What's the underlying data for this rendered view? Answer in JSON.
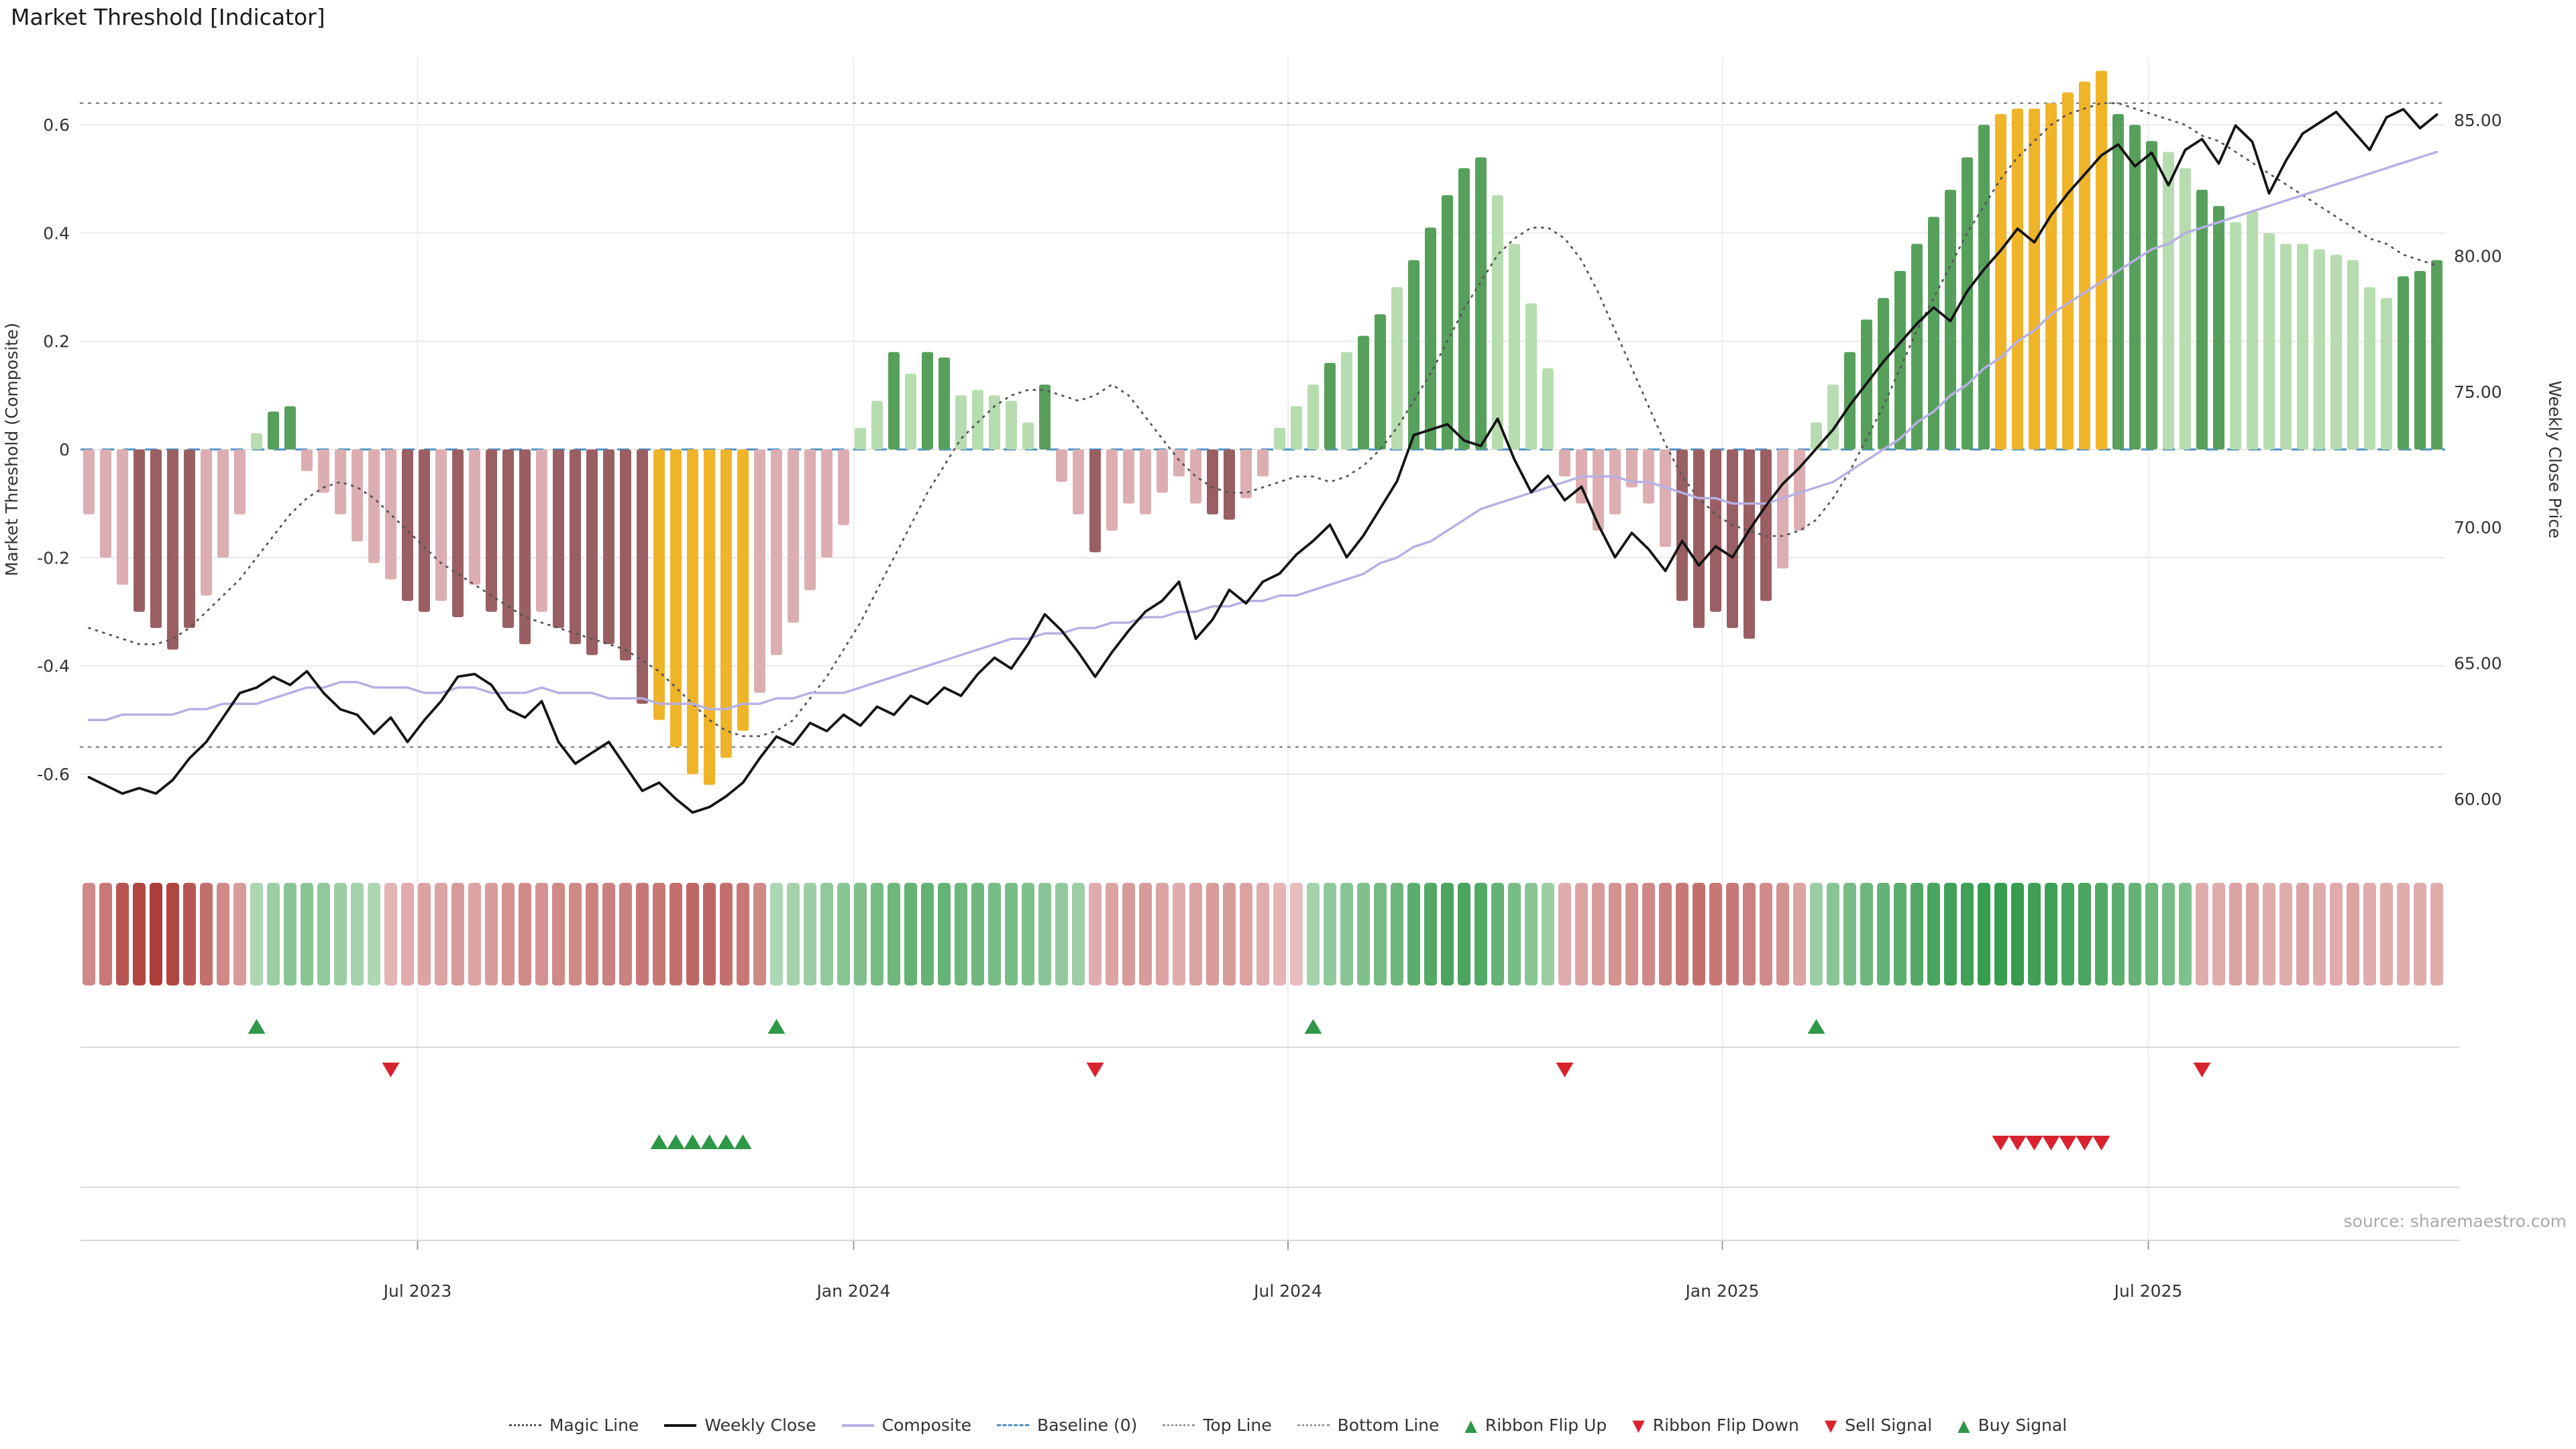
{
  "title": "Market Threshold [Indicator]",
  "source": "source: sharemaestro.com",
  "chart_data": {
    "type": "combo",
    "title": "Market Threshold [Indicator]",
    "y_left": {
      "title": "Market Threshold (Composite)",
      "ticks": [
        {
          "label": "0.6",
          "value": 0.6
        },
        {
          "label": "0.4",
          "value": 0.4
        },
        {
          "label": "0.2",
          "value": 0.2
        },
        {
          "label": "0",
          "value": 0
        },
        {
          "label": "-0.2",
          "value": -0.2
        },
        {
          "label": "-0.4",
          "value": -0.4
        },
        {
          "label": "-0.6",
          "value": -0.6
        }
      ],
      "range": [
        -0.72,
        0.73
      ]
    },
    "y_right": {
      "title": "Weekly Close Price",
      "ticks": [
        {
          "label": "85.00",
          "value": 85
        },
        {
          "label": "80.00",
          "value": 80
        },
        {
          "label": "75.00",
          "value": 75
        },
        {
          "label": "70.00",
          "value": 70
        },
        {
          "label": "65.00",
          "value": 65
        },
        {
          "label": "60.00",
          "value": 60
        }
      ],
      "range": [
        58.5,
        86.5
      ]
    },
    "x_ticks": [
      {
        "label": "Jul 2023",
        "week": 19.6
      },
      {
        "label": "Jan 2024",
        "week": 45.6
      },
      {
        "label": "Jul 2024",
        "week": 71.5
      },
      {
        "label": "Jan 2025",
        "week": 97.4
      },
      {
        "label": "Jul 2025",
        "week": 122.8
      }
    ],
    "top_line": 0.64,
    "bottom_line": -0.55,
    "baseline": 0,
    "bars": {
      "values": [
        -0.12,
        -0.2,
        -0.25,
        -0.3,
        -0.33,
        -0.37,
        -0.33,
        -0.27,
        -0.2,
        -0.12,
        0.03,
        0.07,
        0.08,
        -0.04,
        -0.08,
        -0.12,
        -0.17,
        -0.21,
        -0.24,
        -0.28,
        -0.3,
        -0.28,
        -0.31,
        -0.25,
        -0.3,
        -0.33,
        -0.36,
        -0.3,
        -0.33,
        -0.36,
        -0.38,
        -0.36,
        -0.39,
        -0.47,
        -0.5,
        -0.55,
        -0.6,
        -0.62,
        -0.57,
        -0.52,
        -0.45,
        -0.38,
        -0.32,
        -0.26,
        -0.2,
        -0.14,
        0.04,
        0.09,
        0.18,
        0.14,
        0.18,
        0.17,
        0.1,
        0.11,
        0.1,
        0.09,
        0.05,
        0.12,
        -0.06,
        -0.12,
        -0.19,
        -0.15,
        -0.1,
        -0.12,
        -0.08,
        -0.05,
        -0.1,
        -0.12,
        -0.13,
        -0.09,
        -0.05,
        0.04,
        0.08,
        0.12,
        0.16,
        0.18,
        0.21,
        0.25,
        0.3,
        0.35,
        0.41,
        0.47,
        0.52,
        0.54,
        0.47,
        0.38,
        0.27,
        0.15,
        -0.05,
        -0.1,
        -0.15,
        -0.12,
        -0.07,
        -0.1,
        -0.18,
        -0.28,
        -0.33,
        -0.3,
        -0.33,
        -0.35,
        -0.28,
        -0.22,
        -0.15,
        0.05,
        0.12,
        0.18,
        0.24,
        0.28,
        0.33,
        0.38,
        0.43,
        0.48,
        0.54,
        0.6,
        0.62,
        0.63,
        0.63,
        0.64,
        0.66,
        0.68,
        0.7,
        0.62,
        0.6,
        0.57,
        0.55,
        0.52,
        0.48,
        0.45,
        0.42,
        0.44,
        0.4,
        0.38,
        0.38,
        0.37,
        0.36,
        0.35,
        0.3,
        0.28,
        0.32,
        0.33,
        0.35
      ],
      "shades": "pppPPPPpppgGGppppppPPpPpPPPpPPPPPPYYYYYYppppppggGgGGgggggGppPppppppPPppgggGgGGgGGGGGggggpppppppPPPPPPppggGGGGGGGGGYYYYYYYGGGggGGggggggggggGGG"
    },
    "weekly_close": [
      60.8,
      60.5,
      60.2,
      60.4,
      60.2,
      60.7,
      61.5,
      62.1,
      63.0,
      63.9,
      64.1,
      64.5,
      64.2,
      64.7,
      63.9,
      63.3,
      63.1,
      62.4,
      63.0,
      62.1,
      62.9,
      63.6,
      64.5,
      64.6,
      64.2,
      63.3,
      63.0,
      63.6,
      62.1,
      61.3,
      61.7,
      62.1,
      61.2,
      60.3,
      60.6,
      60.0,
      59.5,
      59.7,
      60.1,
      60.6,
      61.5,
      62.3,
      62.0,
      62.8,
      62.5,
      63.1,
      62.7,
      63.4,
      63.1,
      63.8,
      63.5,
      64.1,
      63.8,
      64.6,
      65.2,
      64.8,
      65.7,
      66.8,
      66.2,
      65.4,
      64.5,
      65.4,
      66.2,
      66.9,
      67.3,
      68.0,
      65.9,
      66.6,
      67.7,
      67.2,
      68.0,
      68.3,
      69.0,
      69.5,
      70.1,
      68.9,
      69.7,
      70.7,
      71.7,
      73.4,
      73.6,
      73.8,
      73.2,
      73.0,
      74.0,
      72.5,
      71.3,
      71.9,
      71.0,
      71.5,
      70.1,
      68.9,
      69.8,
      69.2,
      68.4,
      69.5,
      68.6,
      69.3,
      68.9,
      69.9,
      70.8,
      71.6,
      72.2,
      72.9,
      73.6,
      74.5,
      75.3,
      76.1,
      76.8,
      77.5,
      78.1,
      77.6,
      78.7,
      79.5,
      80.2,
      81.0,
      80.5,
      81.5,
      82.3,
      83.0,
      83.7,
      84.1,
      83.3,
      83.8,
      82.6,
      83.9,
      84.3,
      83.4,
      84.8,
      84.2,
      82.3,
      83.5,
      84.5,
      84.9,
      85.3,
      84.6,
      83.9,
      85.1,
      85.4,
      84.7,
      85.2
    ],
    "composite": [
      -0.5,
      -0.5,
      -0.49,
      -0.49,
      -0.49,
      -0.49,
      -0.48,
      -0.48,
      -0.47,
      -0.47,
      -0.47,
      -0.46,
      -0.45,
      -0.44,
      -0.44,
      -0.43,
      -0.43,
      -0.44,
      -0.44,
      -0.44,
      -0.45,
      -0.45,
      -0.44,
      -0.44,
      -0.45,
      -0.45,
      -0.45,
      -0.44,
      -0.45,
      -0.45,
      -0.45,
      -0.46,
      -0.46,
      -0.46,
      -0.47,
      -0.47,
      -0.47,
      -0.48,
      -0.48,
      -0.47,
      -0.47,
      -0.46,
      -0.46,
      -0.45,
      -0.45,
      -0.45,
      -0.44,
      -0.43,
      -0.42,
      -0.41,
      -0.4,
      -0.39,
      -0.38,
      -0.37,
      -0.36,
      -0.35,
      -0.35,
      -0.34,
      -0.34,
      -0.33,
      -0.33,
      -0.32,
      -0.32,
      -0.31,
      -0.31,
      -0.3,
      -0.3,
      -0.29,
      -0.29,
      -0.28,
      -0.28,
      -0.27,
      -0.27,
      -0.26,
      -0.25,
      -0.24,
      -0.23,
      -0.21,
      -0.2,
      -0.18,
      -0.17,
      -0.15,
      -0.13,
      -0.11,
      -0.1,
      -0.09,
      -0.08,
      -0.07,
      -0.06,
      -0.05,
      -0.05,
      -0.05,
      -0.06,
      -0.06,
      -0.07,
      -0.08,
      -0.09,
      -0.09,
      -0.1,
      -0.1,
      -0.1,
      -0.09,
      -0.08,
      -0.07,
      -0.06,
      -0.04,
      -0.02,
      0.0,
      0.02,
      0.05,
      0.07,
      0.1,
      0.12,
      0.15,
      0.17,
      0.2,
      0.22,
      0.25,
      0.27,
      0.29,
      0.31,
      0.33,
      0.35,
      0.37,
      0.38,
      0.4,
      0.41,
      0.42,
      0.43,
      0.44,
      0.45,
      0.46,
      0.47,
      0.48,
      0.49,
      0.5,
      0.51,
      0.52,
      0.53,
      0.54,
      0.55
    ],
    "magic_line": [
      -0.33,
      -0.34,
      -0.35,
      -0.36,
      -0.36,
      -0.35,
      -0.33,
      -0.3,
      -0.27,
      -0.24,
      -0.2,
      -0.16,
      -0.12,
      -0.09,
      -0.07,
      -0.06,
      -0.07,
      -0.09,
      -0.12,
      -0.15,
      -0.18,
      -0.21,
      -0.23,
      -0.25,
      -0.27,
      -0.29,
      -0.31,
      -0.32,
      -0.33,
      -0.34,
      -0.35,
      -0.36,
      -0.37,
      -0.39,
      -0.41,
      -0.44,
      -0.47,
      -0.5,
      -0.52,
      -0.53,
      -0.53,
      -0.52,
      -0.5,
      -0.46,
      -0.42,
      -0.37,
      -0.32,
      -0.26,
      -0.2,
      -0.14,
      -0.08,
      -0.03,
      0.02,
      0.05,
      0.08,
      0.1,
      0.11,
      0.11,
      0.1,
      0.09,
      0.1,
      0.12,
      0.1,
      0.06,
      0.02,
      -0.02,
      -0.05,
      -0.07,
      -0.08,
      -0.08,
      -0.07,
      -0.06,
      -0.05,
      -0.05,
      -0.06,
      -0.05,
      -0.03,
      0.0,
      0.04,
      0.09,
      0.14,
      0.2,
      0.26,
      0.31,
      0.36,
      0.39,
      0.41,
      0.41,
      0.39,
      0.35,
      0.29,
      0.22,
      0.15,
      0.08,
      0.01,
      -0.05,
      -0.09,
      -0.12,
      -0.14,
      -0.15,
      -0.16,
      -0.16,
      -0.15,
      -0.13,
      -0.09,
      -0.04,
      0.02,
      0.08,
      0.15,
      0.22,
      0.28,
      0.34,
      0.4,
      0.45,
      0.5,
      0.54,
      0.57,
      0.6,
      0.62,
      0.63,
      0.64,
      0.64,
      0.63,
      0.62,
      0.61,
      0.6,
      0.58,
      0.57,
      0.55,
      0.53,
      0.51,
      0.49,
      0.47,
      0.45,
      0.43,
      0.41,
      0.39,
      0.38,
      0.36,
      0.35,
      0.34
    ],
    "ribbon": [
      -0.5,
      -0.6,
      -0.8,
      -0.9,
      -0.95,
      -0.9,
      -0.8,
      -0.65,
      -0.5,
      -0.4,
      0.3,
      0.4,
      0.5,
      0.5,
      0.45,
      0.4,
      0.35,
      0.3,
      -0.25,
      -0.3,
      -0.35,
      -0.35,
      -0.4,
      -0.35,
      -0.4,
      -0.45,
      -0.5,
      -0.45,
      -0.5,
      -0.5,
      -0.55,
      -0.55,
      -0.55,
      -0.6,
      -0.6,
      -0.65,
      -0.7,
      -0.7,
      -0.65,
      -0.6,
      -0.5,
      0.3,
      0.35,
      0.4,
      0.45,
      0.5,
      0.55,
      0.6,
      0.65,
      0.7,
      0.7,
      0.7,
      0.65,
      0.65,
      0.6,
      0.6,
      0.55,
      0.5,
      0.45,
      0.4,
      -0.3,
      -0.35,
      -0.4,
      -0.4,
      -0.35,
      -0.3,
      -0.35,
      -0.4,
      -0.4,
      -0.35,
      -0.3,
      -0.25,
      -0.2,
      0.35,
      0.45,
      0.5,
      0.55,
      0.6,
      0.65,
      0.75,
      0.8,
      0.85,
      0.85,
      0.8,
      0.7,
      0.6,
      0.5,
      0.4,
      -0.3,
      -0.35,
      -0.4,
      -0.45,
      -0.45,
      -0.5,
      -0.55,
      -0.6,
      -0.65,
      -0.6,
      -0.6,
      -0.55,
      -0.5,
      -0.45,
      -0.35,
      0.4,
      0.5,
      0.6,
      0.65,
      0.7,
      0.75,
      0.8,
      0.85,
      0.9,
      0.9,
      0.95,
      0.95,
      0.95,
      0.9,
      0.9,
      0.85,
      0.85,
      0.8,
      0.75,
      0.7,
      0.65,
      0.6,
      0.55,
      -0.3,
      -0.3,
      -0.35,
      -0.35,
      -0.3,
      -0.3,
      -0.35,
      -0.3,
      -0.3,
      -0.35,
      -0.3,
      -0.3,
      -0.3,
      -0.3,
      -0.3
    ],
    "signals": {
      "ribbon_flip_up": [
        10,
        41,
        73,
        103
      ],
      "ribbon_flip_down": [
        18,
        60,
        88,
        126
      ],
      "buy": [
        34,
        35,
        36,
        37,
        38,
        39
      ],
      "sell": [
        114,
        115,
        116,
        117,
        118,
        119,
        120
      ]
    },
    "colors": {
      "bar_pink": "#dcaeb1",
      "bar_maroon": "#9a5f63",
      "bar_light_green": "#b7dcb0",
      "bar_dark_green": "#57a05c",
      "bar_gold": "#f0b429",
      "weekly_close": "#141414",
      "composite": "#b6b0e4",
      "magic_line": "#555555",
      "baseline": "#4a90c4",
      "top_bottom": "#888888",
      "signal_green": "#2e9748",
      "signal_red": "#d8232e",
      "ribbon_green_dark": "#2e9748",
      "ribbon_green_light": "#e4f2e0",
      "ribbon_red_dark": "#a83430",
      "ribbon_red_light": "#f6dfdf",
      "gridline": "#e9e9e9"
    }
  },
  "legend": {
    "items": [
      {
        "label": "Magic Line",
        "style": "dotted-dark",
        "icon": "magic-line-marker"
      },
      {
        "label": "Weekly Close",
        "style": "solid-black",
        "icon": "weekly-close-marker"
      },
      {
        "label": "Composite",
        "style": "solid-purple",
        "icon": "composite-marker"
      },
      {
        "label": "Baseline (0)",
        "style": "dashed-blue",
        "icon": "baseline-marker"
      },
      {
        "label": "Top Line",
        "style": "dotted-gray",
        "icon": "top-line-marker"
      },
      {
        "label": "Bottom Line",
        "style": "dotted-gray",
        "icon": "bottom-line-marker"
      },
      {
        "label": "Ribbon Flip Up",
        "style": "tri-up",
        "color": "#2e9748",
        "icon": "ribbon-flip-up-marker"
      },
      {
        "label": "Ribbon Flip Down",
        "style": "tri-down",
        "color": "#d8232e",
        "icon": "ribbon-flip-down-marker"
      },
      {
        "label": "Sell Signal",
        "style": "tri-down",
        "color": "#d8232e",
        "icon": "sell-signal-marker"
      },
      {
        "label": "Buy Signal",
        "style": "tri-up",
        "color": "#2e9748",
        "icon": "buy-signal-marker"
      }
    ]
  }
}
